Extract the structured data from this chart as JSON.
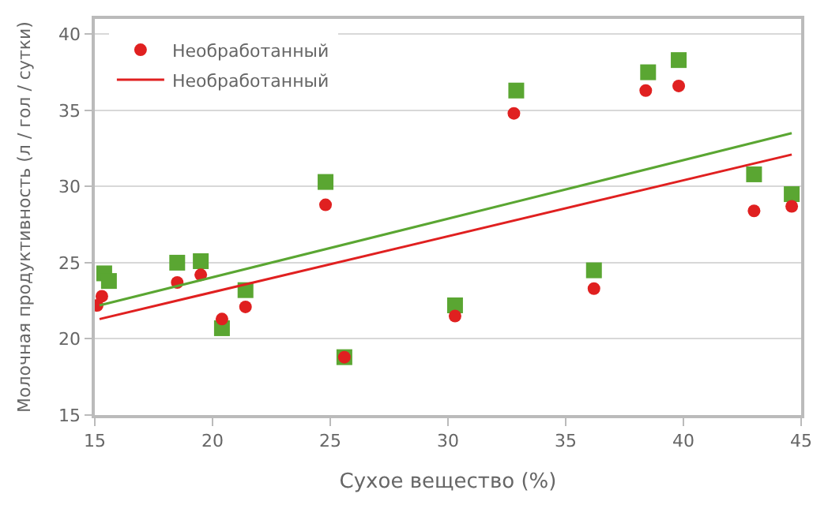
{
  "chart_data": {
    "type": "scatter",
    "xlabel": "Сухое вещество (%)",
    "ylabel": "Молочная продуктивность (л / гол / сутки)",
    "xlim": [
      15,
      45
    ],
    "xticks": [
      15,
      20,
      25,
      30,
      35,
      40,
      45
    ],
    "ylim": [
      15,
      41
    ],
    "yticks": [
      15,
      20,
      25,
      30,
      35,
      40
    ],
    "grid": "y",
    "legend": "top left",
    "series": [
      {
        "marker": "square",
        "color": "#5aa632",
        "x": [
          15.4,
          15.6,
          18.5,
          19.5,
          20.4,
          21.4,
          24.8,
          25.6,
          30.3,
          32.9,
          36.2,
          38.5,
          39.8,
          43,
          44.6
        ],
        "values": [
          24.3,
          23.8,
          25,
          25.1,
          20.7,
          23.2,
          30.3,
          18.8,
          22.2,
          36.3,
          24.5,
          37.5,
          38.3,
          30.8,
          29.5
        ]
      },
      {
        "marker": "circle",
        "name": "Необработанный",
        "color": "#e02020",
        "x": [
          15.1,
          15.3,
          18.5,
          19.5,
          20.4,
          21.4,
          24.8,
          25.6,
          30.3,
          32.8,
          36.2,
          38.4,
          39.8,
          43,
          44.6
        ],
        "values": [
          22.2,
          22.8,
          23.7,
          24.2,
          21.3,
          22.1,
          28.8,
          18.8,
          21.5,
          34.8,
          23.3,
          36.3,
          36.6,
          28.4,
          28.7
        ]
      },
      {
        "type": "line",
        "color": "#5aa632",
        "x": [
          15.2,
          44.6
        ],
        "values": [
          22.2,
          33.5
        ]
      },
      {
        "type": "line",
        "name": "Необработанный",
        "color": "#e02020",
        "x": [
          15.2,
          44.6
        ],
        "values": [
          21.3,
          32.1
        ]
      }
    ]
  }
}
